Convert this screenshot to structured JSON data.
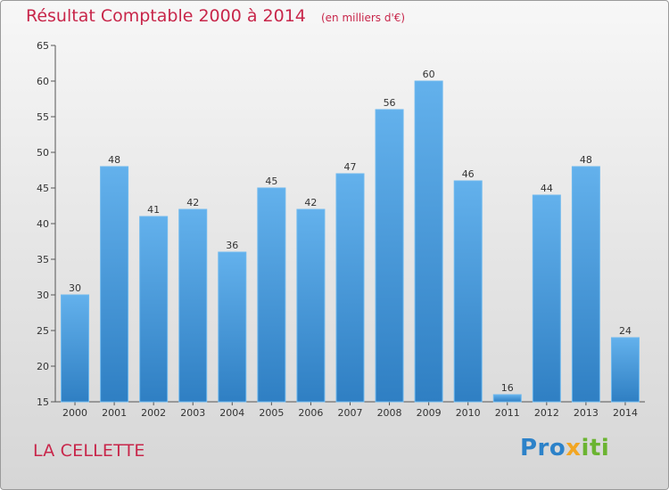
{
  "title": "Résultat Comptable 2000 à 2014",
  "subtitle": "(en milliers d'€)",
  "town": "LA CELLETTE",
  "brand": "Proxiti",
  "colors": {
    "bar": "#4b9ad8",
    "bar_light": "#63b1ec",
    "title": "#c8264a"
  },
  "chart_data": {
    "type": "bar",
    "title": "Résultat Comptable 2000 à 2014",
    "subtitle": "(en milliers d'€)",
    "categories": [
      "2000",
      "2001",
      "2002",
      "2003",
      "2004",
      "2005",
      "2006",
      "2007",
      "2008",
      "2009",
      "2010",
      "2011",
      "2012",
      "2013",
      "2014"
    ],
    "values": [
      30,
      48,
      41,
      42,
      36,
      45,
      42,
      47,
      56,
      60,
      46,
      16,
      44,
      48,
      24
    ],
    "ylim": [
      15,
      65
    ],
    "yticks": [
      15,
      20,
      25,
      30,
      35,
      40,
      45,
      50,
      55,
      60,
      65
    ],
    "grid": false,
    "data_labels": true
  }
}
